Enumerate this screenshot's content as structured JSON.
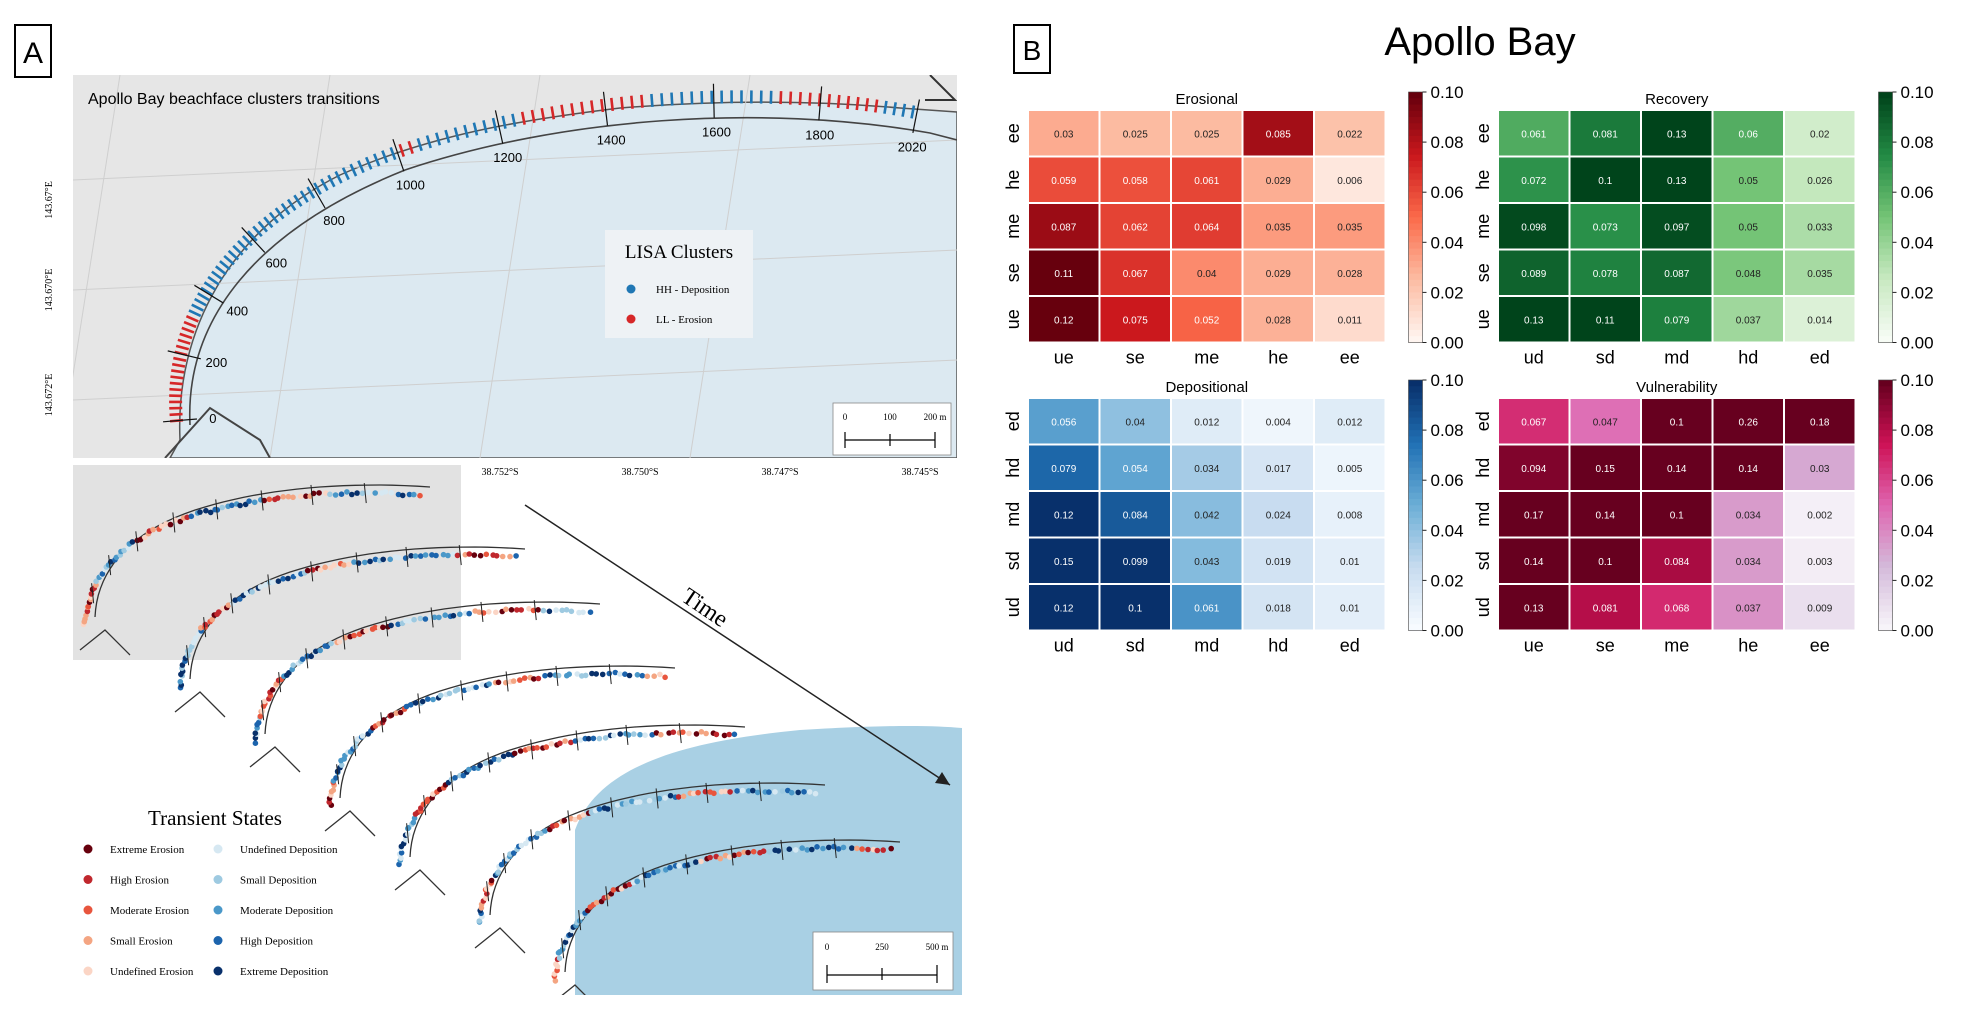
{
  "panel_a": {
    "label": "A",
    "map_title": "Apollo Bay beachface clusters transitions",
    "distance_ticks": [
      "0",
      "200",
      "400",
      "600",
      "800",
      "1000",
      "1200",
      "1400",
      "1600",
      "1800",
      "2020"
    ],
    "lon_labels": [
      "143.67°E",
      "143.670°E",
      "143.672°E"
    ],
    "lat_labels": [
      "38.752°S",
      "38.750°S",
      "38.747°S",
      "38.745°S"
    ],
    "scale_top": {
      "ticks": [
        "0",
        "100",
        "200 m"
      ]
    },
    "scale_bottom": {
      "ticks": [
        "0",
        "250",
        "500 m"
      ]
    },
    "lisa_legend": {
      "title": "LISA Clusters",
      "items": [
        {
          "label": "HH - Deposition",
          "color": "#1f77b4"
        },
        {
          "label": "LL - Erosion",
          "color": "#d62728"
        }
      ]
    },
    "time_label": "Time",
    "transient_legend": {
      "title": "Transient States",
      "left": [
        {
          "label": "Extreme Erosion",
          "color": "#67000d"
        },
        {
          "label": "High Erosion",
          "color": "#c0272d"
        },
        {
          "label": "Moderate Erosion",
          "color": "#e8553d"
        },
        {
          "label": "Small Erosion",
          "color": "#f4a582"
        },
        {
          "label": "Undefined Erosion",
          "color": "#fbd5c5"
        }
      ],
      "right": [
        {
          "label": "Undefined Deposition",
          "color": "#d6e8f2"
        },
        {
          "label": "Small Deposition",
          "color": "#9ecae1"
        },
        {
          "label": "Moderate Deposition",
          "color": "#4a98c9"
        },
        {
          "label": "High Deposition",
          "color": "#1c64ad"
        },
        {
          "label": "Extreme Deposition",
          "color": "#08306b"
        }
      ]
    }
  },
  "panel_b": {
    "label": "B",
    "title": "Apollo Bay"
  },
  "chart_data": [
    {
      "type": "heatmap",
      "title": "Erosional",
      "colormap": "Reds",
      "xlabels": [
        "ue",
        "se",
        "me",
        "he",
        "ee"
      ],
      "ylabels": [
        "ee",
        "he",
        "me",
        "se",
        "ue"
      ],
      "values": [
        [
          0.03,
          0.025,
          0.025,
          0.085,
          0.022
        ],
        [
          0.059,
          0.058,
          0.061,
          0.029,
          0.006
        ],
        [
          0.087,
          0.062,
          0.064,
          0.035,
          0.035
        ],
        [
          0.11,
          0.067,
          0.04,
          0.029,
          0.028
        ],
        [
          0.12,
          0.075,
          0.052,
          0.028,
          0.011
        ]
      ],
      "colorbar": {
        "min": 0.0,
        "max": 0.1,
        "ticks": [
          "0.10",
          "0.08",
          "0.06",
          "0.04",
          "0.02",
          "0.00"
        ]
      }
    },
    {
      "type": "heatmap",
      "title": "Recovery",
      "colormap": "Greens",
      "xlabels": [
        "ud",
        "sd",
        "md",
        "hd",
        "ed"
      ],
      "ylabels": [
        "ee",
        "he",
        "me",
        "se",
        "ue"
      ],
      "values": [
        [
          0.061,
          0.081,
          0.13,
          0.06,
          0.02
        ],
        [
          0.072,
          0.1,
          0.13,
          0.05,
          0.026
        ],
        [
          0.098,
          0.073,
          0.097,
          0.05,
          0.033
        ],
        [
          0.089,
          0.078,
          0.087,
          0.048,
          0.035
        ],
        [
          0.13,
          0.11,
          0.079,
          0.037,
          0.014
        ]
      ],
      "colorbar": {
        "min": 0.0,
        "max": 0.1,
        "ticks": [
          "0.10",
          "0.08",
          "0.06",
          "0.04",
          "0.02",
          "0.00"
        ]
      }
    },
    {
      "type": "heatmap",
      "title": "Depositional",
      "colormap": "Blues",
      "xlabels": [
        "ud",
        "sd",
        "md",
        "hd",
        "ed"
      ],
      "ylabels": [
        "ed",
        "hd",
        "md",
        "sd",
        "ud"
      ],
      "values": [
        [
          0.056,
          0.04,
          0.012,
          0.004,
          0.012
        ],
        [
          0.079,
          0.054,
          0.034,
          0.017,
          0.005
        ],
        [
          0.12,
          0.084,
          0.042,
          0.024,
          0.008
        ],
        [
          0.15,
          0.099,
          0.043,
          0.019,
          0.01
        ],
        [
          0.12,
          0.1,
          0.061,
          0.018,
          0.01
        ]
      ],
      "colorbar": {
        "min": 0.0,
        "max": 0.1,
        "ticks": [
          "0.10",
          "0.08",
          "0.06",
          "0.04",
          "0.02",
          "0.00"
        ]
      }
    },
    {
      "type": "heatmap",
      "title": "Vulnerability",
      "colormap": "PuRd",
      "xlabels": [
        "ue",
        "se",
        "me",
        "he",
        "ee"
      ],
      "ylabels": [
        "ed",
        "hd",
        "md",
        "sd",
        "ud"
      ],
      "values": [
        [
          0.067,
          0.047,
          0.1,
          0.26,
          0.18
        ],
        [
          0.094,
          0.15,
          0.14,
          0.14,
          0.03
        ],
        [
          0.17,
          0.14,
          0.1,
          0.034,
          0.002
        ],
        [
          0.14,
          0.1,
          0.084,
          0.034,
          0.003
        ],
        [
          0.13,
          0.081,
          0.068,
          0.037,
          0.009
        ]
      ],
      "colorbar": {
        "min": 0.0,
        "max": 0.1,
        "ticks": [
          "0.10",
          "0.08",
          "0.06",
          "0.04",
          "0.02",
          "0.00"
        ]
      }
    }
  ]
}
